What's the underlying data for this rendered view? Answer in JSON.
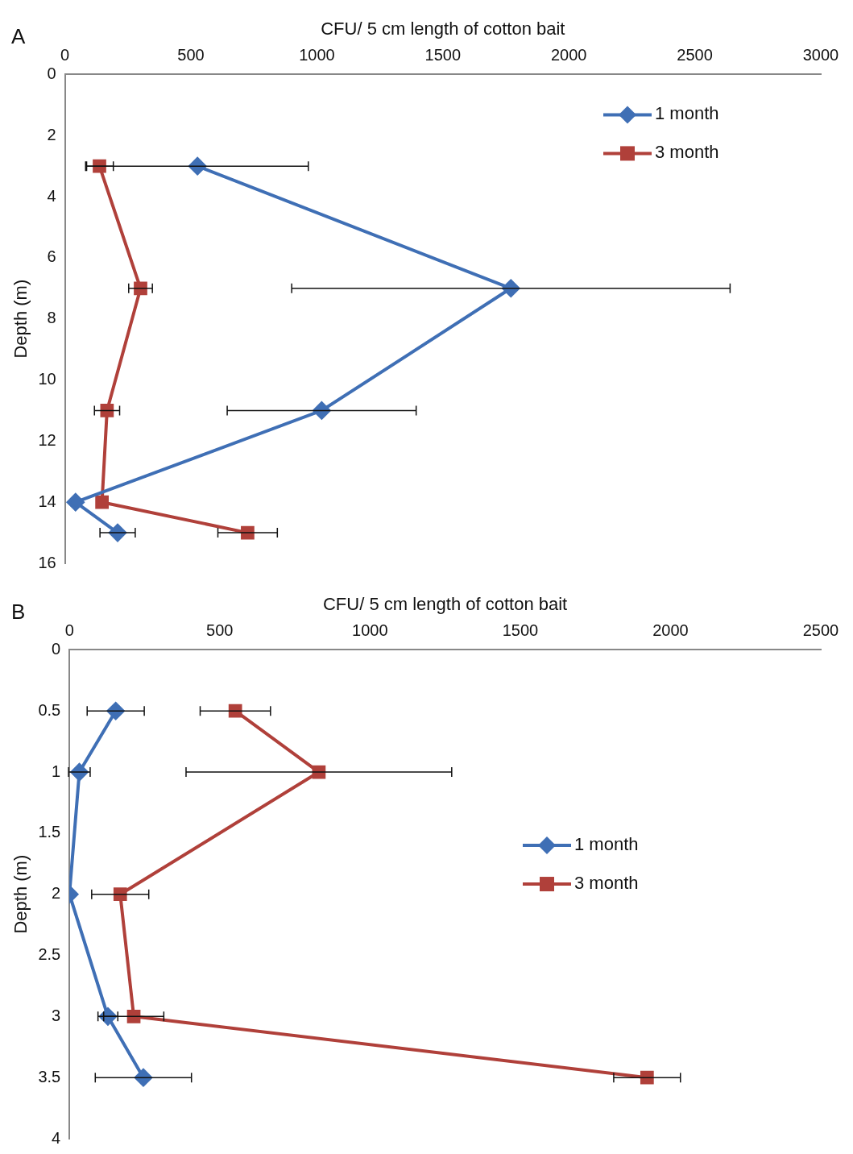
{
  "chart_data": [
    {
      "type": "line",
      "xlabel": "CFU/ 5 cm length of cotton bait",
      "ylabel": "Depth (m)",
      "annotations": [
        "A"
      ],
      "xlim": [
        0,
        3000
      ],
      "xticks": [
        0,
        500,
        1000,
        1500,
        2000,
        2500,
        3000
      ],
      "ylim": [
        16,
        0
      ],
      "yticks": [
        0,
        2,
        4,
        6,
        8,
        10,
        12,
        14,
        16
      ],
      "grid": false,
      "legend": "top right",
      "line_style": "solid",
      "series": [
        {
          "name": "1 month",
          "color": "#3f6fb5",
          "marker": "diamond",
          "x": [
            526,
            1770,
            1019,
            42,
            209
          ],
          "values": [
            3,
            7,
            11,
            14,
            15
          ],
          "xerrors": [
            440,
            870,
            375,
            null,
            70
          ]
        },
        {
          "name": "3 month",
          "color": "#b0403a",
          "marker": "square",
          "x": [
            137,
            300,
            167,
            147,
            725
          ],
          "values": [
            3,
            7,
            11,
            14,
            15
          ],
          "xerrors": [
            55,
            47,
            50,
            null,
            118
          ]
        }
      ]
    },
    {
      "type": "line",
      "xlabel": "CFU/ 5 cm length of cotton bait",
      "ylabel": "Depth (m)",
      "annotations": [
        "B"
      ],
      "xlim": [
        0,
        2500
      ],
      "xticks": [
        0,
        500,
        1000,
        1500,
        2000,
        2500
      ],
      "ylim": [
        4,
        0
      ],
      "yticks": [
        0,
        0.5,
        1,
        1.5,
        2,
        2.5,
        3,
        3.5,
        4
      ],
      "grid": false,
      "legend": "right",
      "line_style": "solid",
      "series": [
        {
          "name": "1 month",
          "color": "#3f6fb5",
          "marker": "diamond",
          "x": [
            154,
            33,
            0,
            128,
            246
          ],
          "values": [
            0.5,
            1,
            2,
            3,
            3.5
          ],
          "xerrors": [
            95,
            36,
            null,
            33,
            160
          ]
        },
        {
          "name": "3 month",
          "color": "#b0403a",
          "marker": "square",
          "x": [
            552,
            830,
            169,
            214,
            1922
          ],
          "values": [
            0.5,
            1,
            2,
            3,
            3.5
          ],
          "xerrors": [
            117,
            442,
            95,
            100,
            111
          ]
        }
      ]
    }
  ]
}
